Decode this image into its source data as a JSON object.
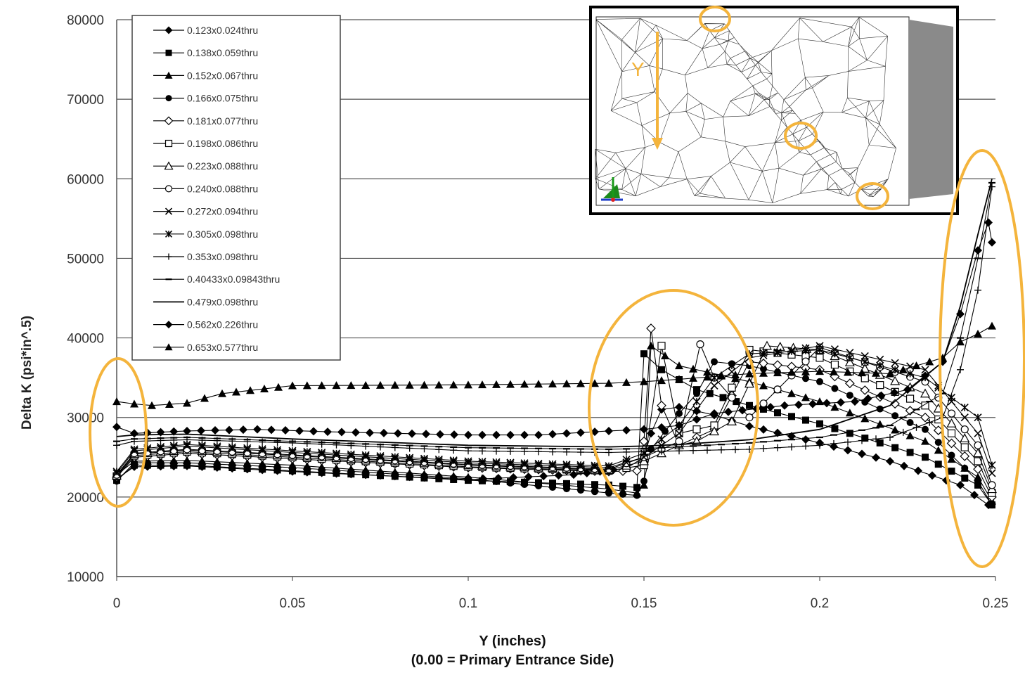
{
  "chart_data": {
    "type": "line",
    "title": "",
    "xlabel": "Y (inches)",
    "xlabel_line2": "(0.00 = Primary Entrance Side)",
    "ylabel": "Delta K (psi*in^.5)",
    "xlim": [
      0,
      0.25
    ],
    "ylim": [
      10000,
      80000
    ],
    "x_ticks": [
      "0",
      "0.05",
      "0.1",
      "0.15",
      "0.2",
      "0.25"
    ],
    "y_ticks": [
      "10000",
      "20000",
      "30000",
      "40000",
      "50000",
      "60000",
      "70000",
      "80000"
    ],
    "grid": "horizontal",
    "legend_position": "top-left",
    "series": [
      {
        "name": "0.123x0.024thru",
        "marker": "diamond",
        "points": [
          [
            0,
            22300
          ],
          [
            0.005,
            23800
          ],
          [
            0.02,
            23900
          ],
          [
            0.05,
            23200
          ],
          [
            0.1,
            22200
          ],
          [
            0.13,
            22800
          ],
          [
            0.145,
            23600
          ],
          [
            0.15,
            25000
          ],
          [
            0.152,
            28000
          ],
          [
            0.155,
            31000
          ],
          [
            0.16,
            31300
          ],
          [
            0.17,
            30300
          ],
          [
            0.18,
            28900
          ],
          [
            0.2,
            26800
          ],
          [
            0.22,
            24500
          ],
          [
            0.24,
            21500
          ],
          [
            0.248,
            19000
          ]
        ]
      },
      {
        "name": "0.138x0.059thru",
        "marker": "square",
        "points": [
          [
            0,
            22100
          ],
          [
            0.005,
            24000
          ],
          [
            0.02,
            24000
          ],
          [
            0.05,
            23300
          ],
          [
            0.1,
            22100
          ],
          [
            0.14,
            21500
          ],
          [
            0.148,
            21200
          ],
          [
            0.15,
            38000
          ],
          [
            0.155,
            36000
          ],
          [
            0.165,
            33500
          ],
          [
            0.18,
            31500
          ],
          [
            0.2,
            29200
          ],
          [
            0.23,
            25000
          ],
          [
            0.245,
            21500
          ],
          [
            0.249,
            19000
          ]
        ]
      },
      {
        "name": "0.152x0.067thru",
        "marker": "triangle",
        "points": [
          [
            0,
            22800
          ],
          [
            0.005,
            24500
          ],
          [
            0.02,
            24600
          ],
          [
            0.05,
            24000
          ],
          [
            0.1,
            22500
          ],
          [
            0.14,
            21000
          ],
          [
            0.148,
            20500
          ],
          [
            0.15,
            21500
          ],
          [
            0.152,
            39000
          ],
          [
            0.16,
            36500
          ],
          [
            0.18,
            34500
          ],
          [
            0.2,
            32000
          ],
          [
            0.23,
            27000
          ],
          [
            0.245,
            22500
          ],
          [
            0.249,
            19500
          ]
        ]
      },
      {
        "name": "0.166x0.075thru",
        "marker": "circle",
        "points": [
          [
            0,
            22000
          ],
          [
            0.005,
            24300
          ],
          [
            0.02,
            24300
          ],
          [
            0.05,
            23700
          ],
          [
            0.1,
            22300
          ],
          [
            0.14,
            20500
          ],
          [
            0.148,
            20200
          ],
          [
            0.15,
            22000
          ],
          [
            0.152,
            26000
          ],
          [
            0.16,
            30500
          ],
          [
            0.165,
            33000
          ],
          [
            0.17,
            37000
          ],
          [
            0.18,
            36500
          ],
          [
            0.2,
            34500
          ],
          [
            0.23,
            28500
          ],
          [
            0.245,
            22000
          ],
          [
            0.249,
            19000
          ]
        ]
      },
      {
        "name": "0.181x0.077thru",
        "marker": "open-diamond",
        "points": [
          [
            0,
            22500
          ],
          [
            0.005,
            25000
          ],
          [
            0.02,
            25500
          ],
          [
            0.05,
            24800
          ],
          [
            0.1,
            23700
          ],
          [
            0.14,
            23200
          ],
          [
            0.148,
            23300
          ],
          [
            0.15,
            27000
          ],
          [
            0.152,
            41200
          ],
          [
            0.155,
            31500
          ],
          [
            0.16,
            26500
          ],
          [
            0.17,
            28500
          ],
          [
            0.18,
            37000
          ],
          [
            0.2,
            36000
          ],
          [
            0.23,
            30000
          ],
          [
            0.245,
            23500
          ],
          [
            0.249,
            20000
          ]
        ]
      },
      {
        "name": "0.198x0.086thru",
        "marker": "open-square",
        "points": [
          [
            0,
            22600
          ],
          [
            0.005,
            25200
          ],
          [
            0.02,
            25700
          ],
          [
            0.05,
            25000
          ],
          [
            0.1,
            23800
          ],
          [
            0.14,
            23300
          ],
          [
            0.15,
            24000
          ],
          [
            0.155,
            39000
          ],
          [
            0.16,
            28000
          ],
          [
            0.17,
            29000
          ],
          [
            0.18,
            38500
          ],
          [
            0.2,
            37500
          ],
          [
            0.23,
            31500
          ],
          [
            0.245,
            24500
          ],
          [
            0.249,
            20500
          ]
        ]
      },
      {
        "name": "0.223x0.088thru",
        "marker": "open-triangle",
        "points": [
          [
            0,
            22700
          ],
          [
            0.005,
            25400
          ],
          [
            0.02,
            25900
          ],
          [
            0.05,
            25200
          ],
          [
            0.1,
            24000
          ],
          [
            0.14,
            23400
          ],
          [
            0.15,
            24500
          ],
          [
            0.16,
            26500
          ],
          [
            0.165,
            27000
          ],
          [
            0.175,
            29500
          ],
          [
            0.185,
            39000
          ],
          [
            0.2,
            38500
          ],
          [
            0.23,
            33000
          ],
          [
            0.245,
            25500
          ],
          [
            0.249,
            21000
          ]
        ]
      },
      {
        "name": "0.240x0.088thru",
        "marker": "open-circle",
        "points": [
          [
            0,
            22800
          ],
          [
            0.005,
            25500
          ],
          [
            0.02,
            26000
          ],
          [
            0.05,
            25300
          ],
          [
            0.1,
            24100
          ],
          [
            0.14,
            23500
          ],
          [
            0.15,
            25000
          ],
          [
            0.16,
            27000
          ],
          [
            0.166,
            39200
          ],
          [
            0.17,
            35000
          ],
          [
            0.18,
            30000
          ],
          [
            0.2,
            38800
          ],
          [
            0.23,
            34500
          ],
          [
            0.245,
            26500
          ],
          [
            0.249,
            21500
          ]
        ]
      },
      {
        "name": "0.272x0.094thru",
        "marker": "x",
        "points": [
          [
            0,
            23000
          ],
          [
            0.005,
            25800
          ],
          [
            0.02,
            26400
          ],
          [
            0.05,
            25600
          ],
          [
            0.1,
            24300
          ],
          [
            0.14,
            23700
          ],
          [
            0.15,
            25000
          ],
          [
            0.16,
            28000
          ],
          [
            0.17,
            34000
          ],
          [
            0.18,
            37500
          ],
          [
            0.2,
            39000
          ],
          [
            0.23,
            36000
          ],
          [
            0.245,
            28000
          ],
          [
            0.249,
            23000
          ]
        ]
      },
      {
        "name": "0.305x0.098thru",
        "marker": "star",
        "points": [
          [
            0,
            23200
          ],
          [
            0.005,
            26000
          ],
          [
            0.02,
            26600
          ],
          [
            0.05,
            25800
          ],
          [
            0.1,
            24500
          ],
          [
            0.14,
            23900
          ],
          [
            0.15,
            25500
          ],
          [
            0.16,
            29000
          ],
          [
            0.17,
            35000
          ],
          [
            0.18,
            38000
          ],
          [
            0.2,
            38500
          ],
          [
            0.23,
            35000
          ],
          [
            0.245,
            30000
          ],
          [
            0.249,
            24000
          ]
        ]
      },
      {
        "name": "0.353x0.098thru",
        "marker": "plus",
        "points": [
          [
            0,
            26500
          ],
          [
            0.005,
            27000
          ],
          [
            0.02,
            27200
          ],
          [
            0.05,
            26800
          ],
          [
            0.1,
            25800
          ],
          [
            0.14,
            25600
          ],
          [
            0.15,
            25700
          ],
          [
            0.16,
            25800
          ],
          [
            0.18,
            26000
          ],
          [
            0.2,
            26500
          ],
          [
            0.22,
            27500
          ],
          [
            0.235,
            30000
          ],
          [
            0.24,
            36000
          ],
          [
            0.245,
            46000
          ],
          [
            0.249,
            59000
          ]
        ]
      },
      {
        "name": "0.40433x0.09843thru",
        "marker": "dash",
        "points": [
          [
            0,
            27000
          ],
          [
            0.005,
            27300
          ],
          [
            0.02,
            27500
          ],
          [
            0.05,
            27000
          ],
          [
            0.1,
            26200
          ],
          [
            0.14,
            26000
          ],
          [
            0.15,
            26100
          ],
          [
            0.16,
            26300
          ],
          [
            0.18,
            26800
          ],
          [
            0.2,
            27500
          ],
          [
            0.22,
            29000
          ],
          [
            0.235,
            33000
          ],
          [
            0.24,
            40000
          ],
          [
            0.245,
            50000
          ],
          [
            0.249,
            59500
          ]
        ]
      },
      {
        "name": "0.479x0.098thru",
        "marker": "none",
        "points": [
          [
            0,
            27600
          ],
          [
            0.005,
            27800
          ],
          [
            0.02,
            27900
          ],
          [
            0.05,
            27300
          ],
          [
            0.1,
            26500
          ],
          [
            0.14,
            26300
          ],
          [
            0.15,
            26400
          ],
          [
            0.16,
            26600
          ],
          [
            0.18,
            27200
          ],
          [
            0.2,
            28500
          ],
          [
            0.22,
            31500
          ],
          [
            0.235,
            37000
          ],
          [
            0.24,
            44000
          ],
          [
            0.245,
            53000
          ],
          [
            0.249,
            60000
          ]
        ]
      },
      {
        "name": "0.562x0.226thru",
        "marker": "diamond",
        "points": [
          [
            0,
            28800
          ],
          [
            0.005,
            28000
          ],
          [
            0.02,
            28300
          ],
          [
            0.04,
            28500
          ],
          [
            0.06,
            28200
          ],
          [
            0.1,
            27800
          ],
          [
            0.12,
            27800
          ],
          [
            0.14,
            28300
          ],
          [
            0.15,
            28500
          ],
          [
            0.16,
            29000
          ],
          [
            0.17,
            30500
          ],
          [
            0.19,
            31500
          ],
          [
            0.21,
            32000
          ],
          [
            0.225,
            33500
          ],
          [
            0.235,
            37000
          ],
          [
            0.24,
            43000
          ],
          [
            0.245,
            51000
          ],
          [
            0.248,
            54500
          ],
          [
            0.249,
            52000
          ]
        ]
      },
      {
        "name": "0.653x0.577thru",
        "marker": "triangle",
        "points": [
          [
            0,
            32000
          ],
          [
            0.005,
            31700
          ],
          [
            0.01,
            31500
          ],
          [
            0.02,
            31800
          ],
          [
            0.03,
            33000
          ],
          [
            0.05,
            34000
          ],
          [
            0.1,
            34100
          ],
          [
            0.14,
            34300
          ],
          [
            0.15,
            34500
          ],
          [
            0.16,
            34800
          ],
          [
            0.18,
            35500
          ],
          [
            0.2,
            35800
          ],
          [
            0.22,
            35500
          ],
          [
            0.235,
            37500
          ],
          [
            0.24,
            39500
          ],
          [
            0.245,
            40500
          ],
          [
            0.249,
            41500
          ]
        ]
      }
    ]
  }
}
